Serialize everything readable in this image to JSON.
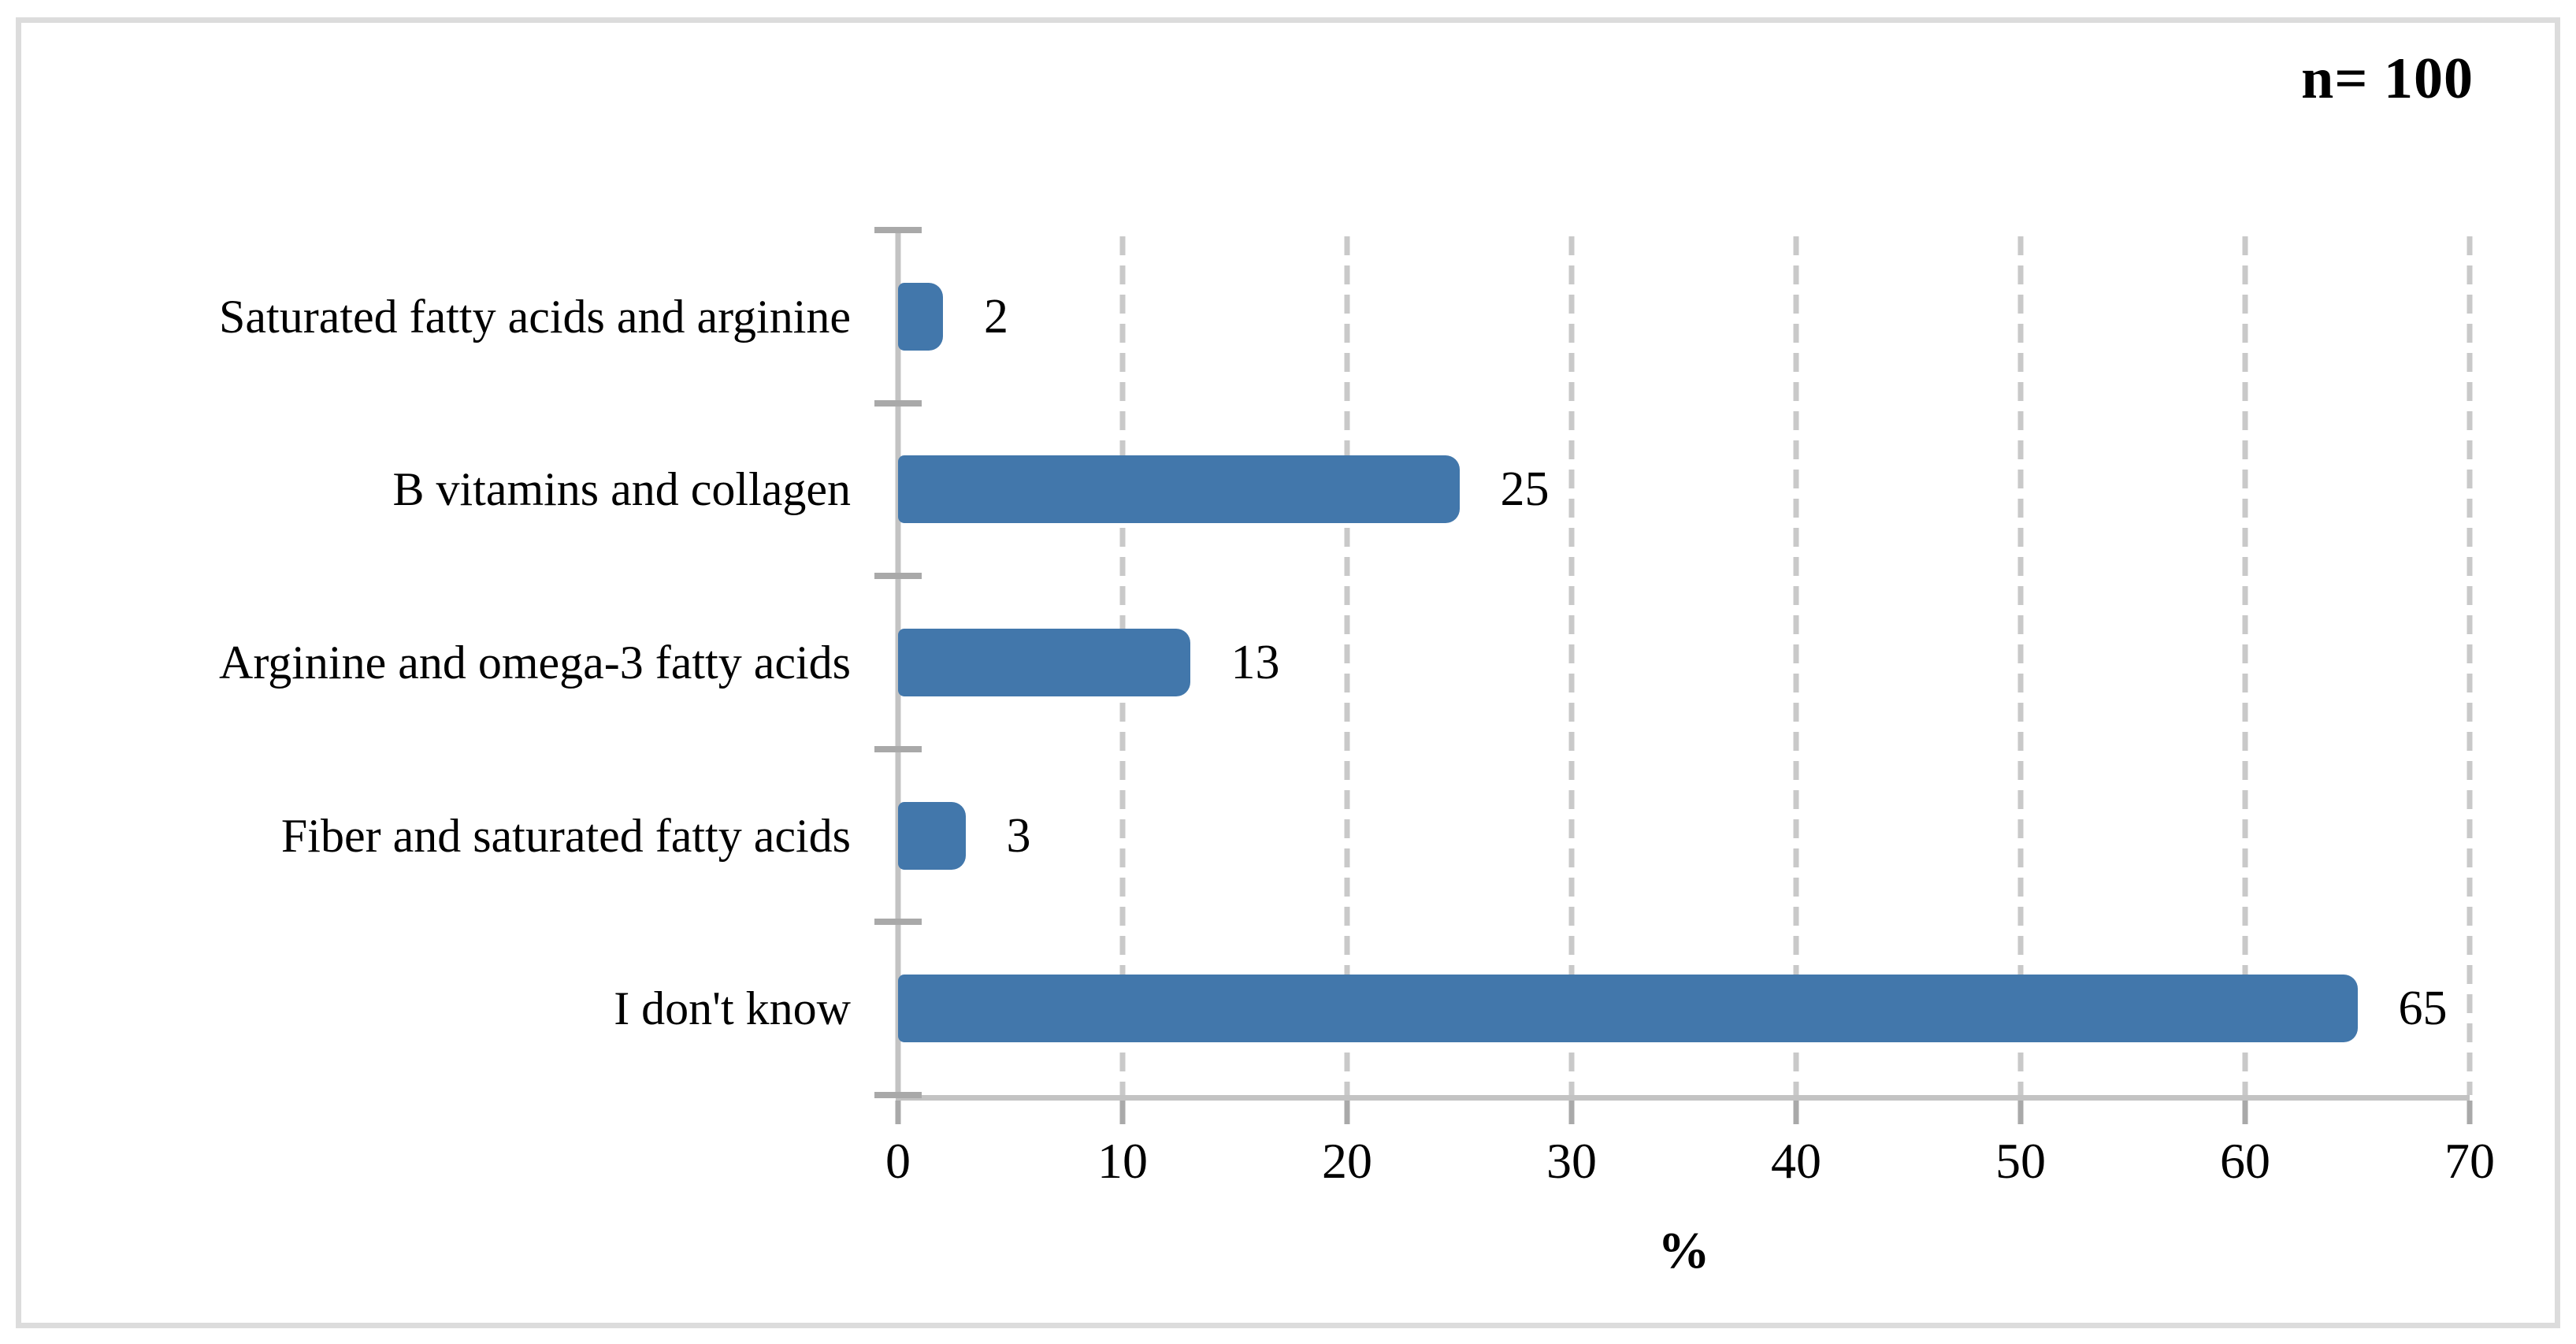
{
  "annotation": {
    "n_label": "n= 100"
  },
  "chart_data": {
    "type": "bar",
    "orientation": "horizontal",
    "title": "",
    "categories": [
      "Saturated fatty acids and arginine",
      "B vitamins and collagen",
      "Arginine and omega-3 fatty acids",
      "Fiber and saturated fatty acids",
      "I don't know"
    ],
    "values": [
      2,
      25,
      13,
      3,
      65
    ],
    "data_labels": [
      2,
      25,
      13,
      3,
      65
    ],
    "xlabel": "%",
    "ylabel": "",
    "xlim": [
      0,
      70
    ],
    "x_ticks": [
      0,
      10,
      20,
      30,
      40,
      50,
      60,
      70
    ],
    "grid": "vertical dashed gridlines at every 10 units",
    "legend": "none",
    "sample_size_note": "n= 100"
  },
  "colors": {
    "bar": "#4277AB",
    "axis_line": "#C3C3C3",
    "gridline": "#C9C9C9",
    "tick_mark": "#A9A9A9",
    "figure_border": "#DCDCDC",
    "text": "#000000",
    "background": "#FFFFFF"
  }
}
